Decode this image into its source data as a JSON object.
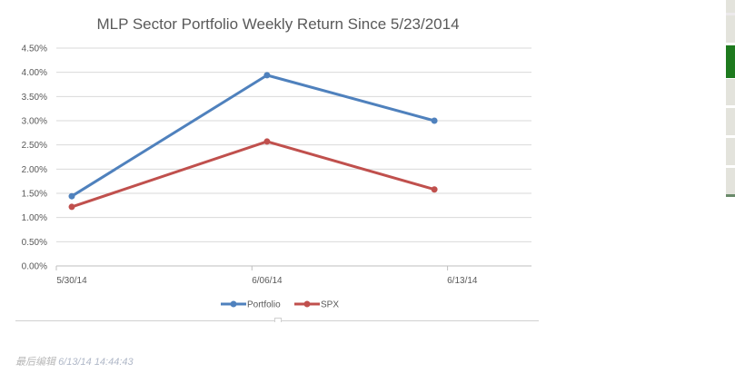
{
  "chart_data": {
    "type": "line",
    "title": "MLP Sector Portfolio Weekly Return Since 5/23/2014",
    "xlabel": "",
    "ylabel": "",
    "x": [
      "5/30/14",
      "6/06/14",
      "6/12/14"
    ],
    "x_day_offsets": [
      0,
      7,
      13
    ],
    "x_tick_labels": [
      "5/30/14",
      "6/06/14",
      "6/13/14"
    ],
    "x_tick_day_offsets": [
      0,
      7,
      14
    ],
    "y_tick_labels": [
      "0.00%",
      "0.50%",
      "1.00%",
      "1.50%",
      "2.00%",
      "2.50%",
      "3.00%",
      "3.50%",
      "4.00%",
      "4.50%"
    ],
    "ylim": [
      0,
      4.5
    ],
    "grid": true,
    "legend_position": "bottom",
    "series": [
      {
        "name": "Portfolio",
        "values": [
          1.44,
          3.94,
          3.0
        ],
        "color": "#4f81bd"
      },
      {
        "name": "SPX",
        "values": [
          1.22,
          2.57,
          1.58
        ],
        "color": "#c0504d"
      }
    ]
  },
  "footer": {
    "label": "最后编辑",
    "timestamp": "6/13/14 14:44:43"
  },
  "side_strip": {
    "accent": "#1e7a1e"
  }
}
